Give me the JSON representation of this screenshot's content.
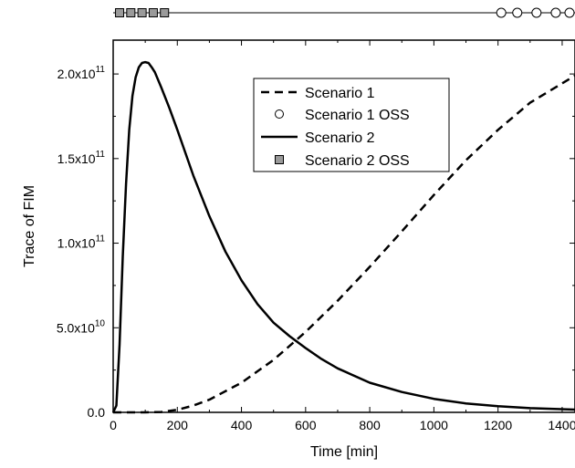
{
  "chart_data": {
    "type": "line",
    "xlabel": "Time [min]",
    "ylabel": "Trace of FIM",
    "xlim": [
      0,
      1440
    ],
    "ylim": [
      0,
      220000000000.0
    ],
    "x_ticks": [
      {
        "value": 0,
        "label": "0"
      },
      {
        "value": 200,
        "label": "200"
      },
      {
        "value": 400,
        "label": "400"
      },
      {
        "value": 600,
        "label": "600"
      },
      {
        "value": 800,
        "label": "800"
      },
      {
        "value": 1000,
        "label": "1000"
      },
      {
        "value": 1200,
        "label": "1200"
      },
      {
        "value": 1400,
        "label": "1400"
      }
    ],
    "y_ticks": [
      {
        "value": 0,
        "mantissa": "0.0",
        "exp": ""
      },
      {
        "value": 50000000000.0,
        "mantissa": "5.0x10",
        "exp": "10"
      },
      {
        "value": 100000000000.0,
        "mantissa": "1.0x10",
        "exp": "11"
      },
      {
        "value": 150000000000.0,
        "mantissa": "1.5x10",
        "exp": "11"
      },
      {
        "value": 200000000000.0,
        "mantissa": "2.0x10",
        "exp": "11"
      }
    ],
    "legend_position": "top-right",
    "legend": [
      {
        "label": "Scenario 1",
        "style": "dashed-line"
      },
      {
        "label": "Scenario 1 OSS",
        "style": "open-circle"
      },
      {
        "label": "Scenario 2",
        "style": "solid-line"
      },
      {
        "label": "Scenario 2 OSS",
        "style": "gray-square"
      }
    ],
    "series": [
      {
        "name": "Scenario 1",
        "style": "dashed",
        "x": [
          0,
          100,
          150,
          200,
          250,
          300,
          400,
          500,
          600,
          700,
          800,
          900,
          1000,
          1100,
          1200,
          1300,
          1440
        ],
        "y": [
          0,
          0,
          200000000.0,
          1500000000.0,
          4000000000.0,
          7500000000.0,
          17500000000.0,
          31000000000.0,
          47500000000.0,
          66000000000.0,
          86000000000.0,
          107000000000.0,
          128500000000.0,
          149000000000.0,
          167000000000.0,
          183000000000.0,
          199000000000.0
        ]
      },
      {
        "name": "Scenario 2",
        "style": "solid",
        "x": [
          0,
          10,
          20,
          30,
          40,
          50,
          60,
          70,
          80,
          90,
          100,
          110,
          120,
          130,
          150,
          175,
          200,
          250,
          300,
          350,
          400,
          450,
          500,
          550,
          600,
          650,
          700,
          800,
          900,
          1000,
          1100,
          1200,
          1300,
          1440
        ],
        "y": [
          0,
          4000000000.0,
          40000000000.0,
          92000000000.0,
          135000000000.0,
          167000000000.0,
          187000000000.0,
          198000000000.0,
          204000000000.0,
          206500000000.0,
          207000000000.0,
          206500000000.0,
          204000000000.0,
          201000000000.0,
          192000000000.0,
          180000000000.0,
          167000000000.0,
          140000000000.0,
          116000000000.0,
          95000000000.0,
          78000000000.0,
          64000000000.0,
          53000000000.0,
          45000000000.0,
          38000000000.0,
          31500000000.0,
          26000000000.0,
          17500000000.0,
          12000000000.0,
          8000000000.0,
          5300000000.0,
          3600000000.0,
          2500000000.0,
          1600000000.0
        ]
      }
    ],
    "oss_strip": {
      "scenario_1_oss_times": [
        1210,
        1260,
        1320,
        1380,
        1440
      ],
      "scenario_2_oss_times": [
        20,
        55,
        90,
        125,
        160
      ]
    }
  }
}
